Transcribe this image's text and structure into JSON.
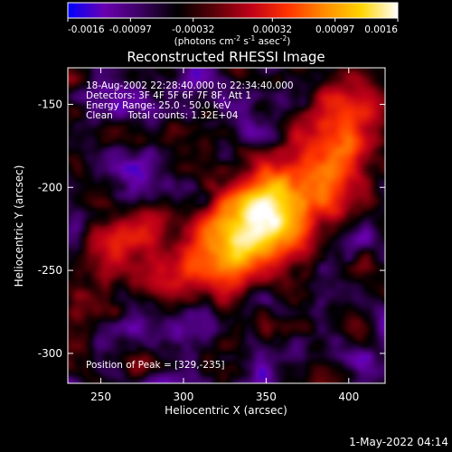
{
  "chart_data": {
    "type": "heatmap",
    "title": "Reconstructed RHESSI Image",
    "xlabel": "Heliocentric X (arcsec)",
    "ylabel": "Heliocentric Y (arcsec)",
    "xlim": [
      230,
      422
    ],
    "ylim": [
      -318,
      -128
    ],
    "xticks": [
      250,
      300,
      350,
      400
    ],
    "yticks": [
      -150,
      -200,
      -250,
      -300
    ],
    "colorbar": {
      "range": [
        -0.0016,
        0.0016
      ],
      "ticks": [
        "-0.0016",
        "-0.00097",
        "-0.00032",
        "0.00032",
        "0.00097",
        "0.0016"
      ],
      "label_parts": [
        "(photons cm",
        "-2",
        " s",
        "-1",
        " asec",
        "-2",
        ")"
      ],
      "colors": [
        "#0000ff",
        "#6a00b0",
        "#3b0060",
        "#000000",
        "#5a0008",
        "#c00018",
        "#ff3300",
        "#ff8c00",
        "#ffd400",
        "#ffffff"
      ]
    },
    "annotations": [
      "18-Aug-2002 22:28:40.000 to 22:34:40.000",
      "Detectors: 3F 4F 5F 6F 7F 8F, Att 1",
      "Energy Range: 25.0 - 50.0 keV",
      "Clean     Total counts: 1.32E+04"
    ],
    "peak_label": "Position of Peak = [329,-235]",
    "peak": [
      329,
      -235
    ],
    "sources": [
      {
        "x": 340,
        "y": -228,
        "sx": 22,
        "sy": 16,
        "amp": 1.0
      },
      {
        "x": 365,
        "y": -205,
        "sx": 22,
        "sy": 14,
        "amp": 0.75
      },
      {
        "x": 300,
        "y": -250,
        "sx": 24,
        "sy": 12,
        "amp": 0.55
      },
      {
        "x": 395,
        "y": -170,
        "sx": 16,
        "sy": 20,
        "amp": 0.6
      },
      {
        "x": 275,
        "y": -222,
        "sx": 14,
        "sy": 10,
        "amp": 0.35
      },
      {
        "x": 258,
        "y": -238,
        "sx": 12,
        "sy": 10,
        "amp": 0.3
      }
    ]
  },
  "footer": {
    "timestamp": "1-May-2022 04:14"
  }
}
